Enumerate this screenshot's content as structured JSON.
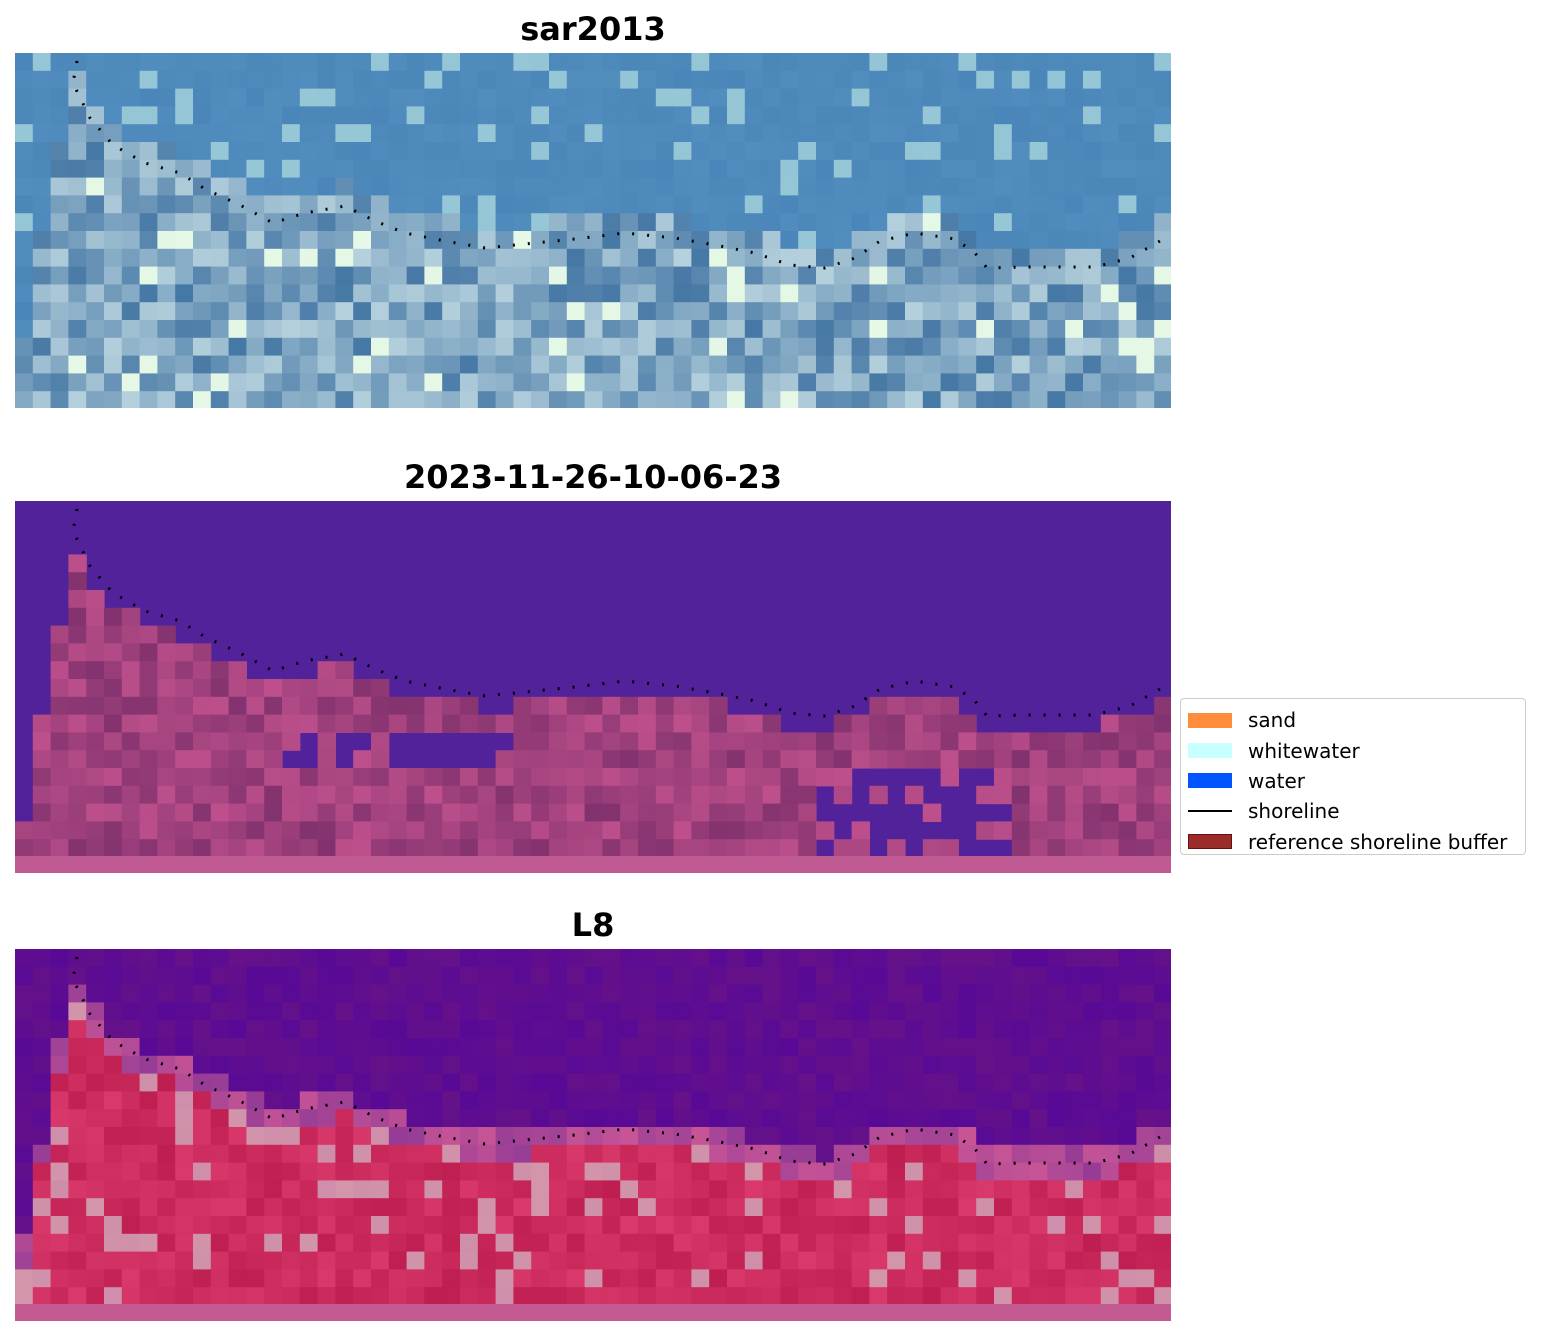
{
  "panels": [
    {
      "title": "sar2013",
      "type": "rgb"
    },
    {
      "title": "2023-11-26-10-06-23",
      "type": "classified"
    },
    {
      "title": "L8",
      "type": "false-color"
    }
  ],
  "legend": {
    "placement": "right",
    "items": [
      {
        "label": "sand",
        "kind": "patch",
        "color": "#ff8c3a"
      },
      {
        "label": "whitewater",
        "kind": "patch",
        "color": "#c8ffff"
      },
      {
        "label": "water",
        "kind": "patch",
        "color": "#0055ff"
      },
      {
        "label": "shoreline",
        "kind": "line",
        "color": "#000000"
      },
      {
        "label": "reference shoreline buffer",
        "kind": "patch",
        "color": "#9b2c2c",
        "edge": "#6b1010"
      }
    ]
  },
  "colors": {
    "water_rgb": "#3f7ab0",
    "water_classified": "#52229a",
    "land_classified": "#8e3e7e",
    "water_l8": "#5c0a98",
    "land_l8": "#c83264",
    "shoreline": "#000000"
  }
}
